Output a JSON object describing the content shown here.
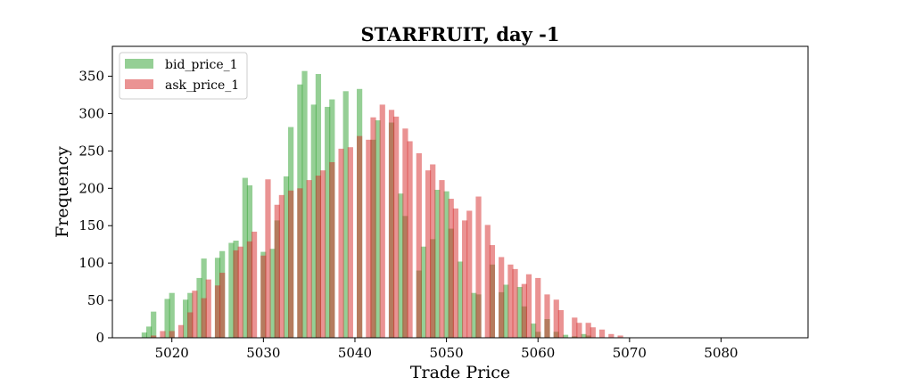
{
  "chart_data": {
    "type": "bar",
    "title": "STARFRUIT, day -1",
    "xlabel": "Trade Price",
    "ylabel": "Frequency",
    "xlim": [
      5013.5,
      5089.5
    ],
    "ylim": [
      0,
      390
    ],
    "xticks": [
      5020,
      5030,
      5040,
      5050,
      5060,
      5070,
      5080
    ],
    "yticks": [
      0,
      50,
      100,
      150,
      200,
      250,
      300,
      350
    ],
    "grid": false,
    "legend_position": "top-left",
    "series": [
      {
        "name": "bid_price_1",
        "color": "#2ca02c",
        "opacity": 0.5,
        "points": [
          [
            5017,
            7
          ],
          [
            5017.5,
            15
          ],
          [
            5018,
            35
          ],
          [
            5019.5,
            52
          ],
          [
            5020,
            60
          ],
          [
            5021.5,
            51
          ],
          [
            5022,
            60
          ],
          [
            5023,
            80
          ],
          [
            5023.5,
            106
          ],
          [
            5025,
            107
          ],
          [
            5025.5,
            116
          ],
          [
            5026.5,
            127
          ],
          [
            5027,
            130
          ],
          [
            5028,
            214
          ],
          [
            5028.5,
            204
          ],
          [
            5030,
            115
          ],
          [
            5031,
            119
          ],
          [
            5031.5,
            157
          ],
          [
            5032.5,
            216
          ],
          [
            5033,
            282
          ],
          [
            5034,
            339
          ],
          [
            5034.5,
            357
          ],
          [
            5035.5,
            312
          ],
          [
            5036,
            353
          ],
          [
            5037,
            309
          ],
          [
            5037.5,
            319
          ],
          [
            5039,
            330
          ],
          [
            5040.5,
            333
          ],
          [
            5042,
            265
          ],
          [
            5042.5,
            291
          ],
          [
            5044,
            288
          ],
          [
            5045,
            193
          ],
          [
            5045.5,
            163
          ],
          [
            5047,
            90
          ],
          [
            5047.5,
            122
          ],
          [
            5048.5,
            132
          ],
          [
            5049,
            198
          ],
          [
            5050,
            196
          ],
          [
            5050.5,
            146
          ],
          [
            5051.5,
            102
          ],
          [
            5053,
            60
          ],
          [
            5053.5,
            58
          ],
          [
            5055,
            98
          ],
          [
            5056,
            61
          ],
          [
            5056.5,
            71
          ],
          [
            5058,
            68
          ],
          [
            5058.5,
            42
          ],
          [
            5059.5,
            19
          ],
          [
            5060,
            8
          ],
          [
            5061,
            25
          ],
          [
            5062,
            8
          ],
          [
            5063,
            4
          ],
          [
            5064,
            2
          ],
          [
            5065,
            5
          ],
          [
            5065.5,
            3
          ]
        ]
      },
      {
        "name": "ask_price_1",
        "color": "#d62728",
        "opacity": 0.5,
        "points": [
          [
            5018,
            3
          ],
          [
            5019,
            9
          ],
          [
            5020,
            9
          ],
          [
            5021,
            17
          ],
          [
            5022,
            34
          ],
          [
            5022.5,
            63
          ],
          [
            5023.5,
            53
          ],
          [
            5024,
            78
          ],
          [
            5025,
            70
          ],
          [
            5025.5,
            87
          ],
          [
            5027,
            117
          ],
          [
            5027.5,
            122
          ],
          [
            5028.5,
            129
          ],
          [
            5029,
            142
          ],
          [
            5030,
            110
          ],
          [
            5030.5,
            212
          ],
          [
            5031.5,
            178
          ],
          [
            5032,
            191
          ],
          [
            5033,
            197
          ],
          [
            5034,
            200
          ],
          [
            5035,
            211
          ],
          [
            5036,
            217
          ],
          [
            5036.5,
            224
          ],
          [
            5037.5,
            235
          ],
          [
            5038.5,
            253
          ],
          [
            5039.5,
            255
          ],
          [
            5040.5,
            270
          ],
          [
            5041.5,
            265
          ],
          [
            5042,
            295
          ],
          [
            5043,
            312
          ],
          [
            5044,
            305
          ],
          [
            5044.5,
            296
          ],
          [
            5045.5,
            280
          ],
          [
            5046,
            263
          ],
          [
            5047,
            247
          ],
          [
            5048,
            224
          ],
          [
            5048.5,
            232
          ],
          [
            5049.5,
            211
          ],
          [
            5050.5,
            186
          ],
          [
            5051,
            173
          ],
          [
            5052,
            157
          ],
          [
            5052.5,
            170
          ],
          [
            5053.5,
            189
          ],
          [
            5054.5,
            151
          ],
          [
            5055,
            124
          ],
          [
            5056,
            108
          ],
          [
            5057,
            98
          ],
          [
            5057.5,
            92
          ],
          [
            5058.5,
            72
          ],
          [
            5059,
            85
          ],
          [
            5060,
            80
          ],
          [
            5061,
            58
          ],
          [
            5062,
            51
          ],
          [
            5062.5,
            37
          ],
          [
            5064,
            27
          ],
          [
            5064.5,
            20
          ],
          [
            5065.5,
            20
          ],
          [
            5066,
            14
          ],
          [
            5067,
            11
          ],
          [
            5068,
            5
          ],
          [
            5069,
            3
          ]
        ]
      }
    ]
  }
}
